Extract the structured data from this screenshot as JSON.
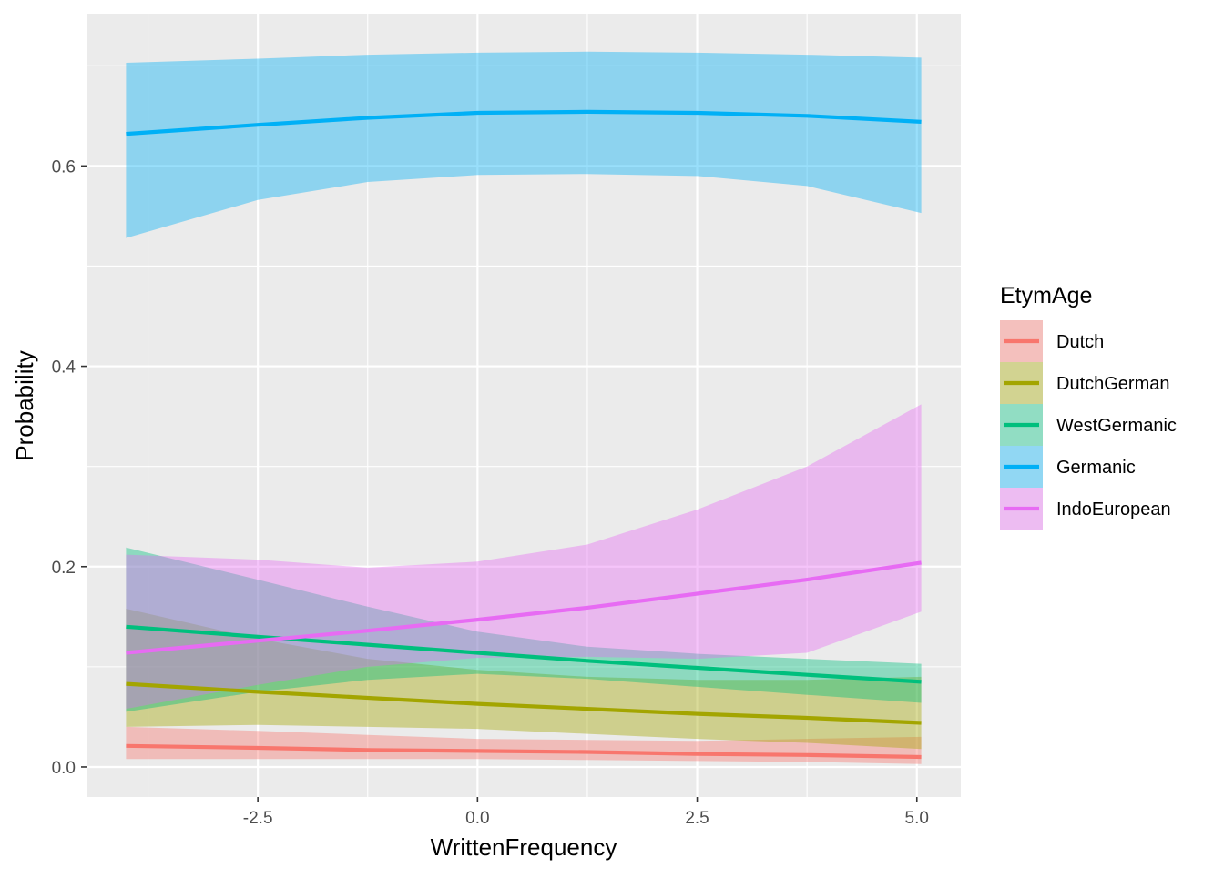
{
  "chart_data": {
    "type": "line",
    "title": "",
    "xlabel": "WrittenFrequency",
    "ylabel": "Probability",
    "xlim": [
      -4.45,
      5.5
    ],
    "ylim": [
      -0.03,
      0.752
    ],
    "x_ticks": [
      -2.5,
      0.0,
      2.5,
      5.0
    ],
    "x_tick_labels": [
      "-2.5",
      "0.0",
      "2.5",
      "5.0"
    ],
    "y_ticks": [
      0.0,
      0.2,
      0.4,
      0.6
    ],
    "y_tick_labels": [
      "0.0",
      "0.2",
      "0.4",
      "0.6"
    ],
    "grid": true,
    "legend_title": "EtymAge",
    "legend_position": "right",
    "x": [
      -4.0,
      -2.5,
      -1.25,
      0.0,
      1.25,
      2.5,
      3.75,
      5.05
    ],
    "series": [
      {
        "name": "Dutch",
        "color": "#F8766D",
        "values": [
          0.021,
          0.019,
          0.017,
          0.016,
          0.015,
          0.013,
          0.012,
          0.01
        ],
        "lower": [
          0.008,
          0.008,
          0.008,
          0.008,
          0.007,
          0.006,
          0.005,
          0.003
        ],
        "upper": [
          0.04,
          0.036,
          0.032,
          0.028,
          0.027,
          0.026,
          0.028,
          0.03
        ]
      },
      {
        "name": "DutchGerman",
        "color": "#A3A500",
        "values": [
          0.083,
          0.075,
          0.069,
          0.063,
          0.058,
          0.053,
          0.049,
          0.044
        ],
        "lower": [
          0.04,
          0.042,
          0.04,
          0.038,
          0.033,
          0.028,
          0.024,
          0.018
        ],
        "upper": [
          0.158,
          0.128,
          0.108,
          0.097,
          0.09,
          0.087,
          0.087,
          0.09
        ]
      },
      {
        "name": "WestGermanic",
        "color": "#00BF7D",
        "values": [
          0.14,
          0.13,
          0.122,
          0.114,
          0.106,
          0.099,
          0.092,
          0.085
        ],
        "lower": [
          0.055,
          0.075,
          0.087,
          0.093,
          0.088,
          0.08,
          0.072,
          0.064
        ],
        "upper": [
          0.219,
          0.187,
          0.16,
          0.135,
          0.12,
          0.113,
          0.108,
          0.103
        ]
      },
      {
        "name": "Germanic",
        "color": "#00B0F6",
        "values": [
          0.632,
          0.641,
          0.648,
          0.653,
          0.654,
          0.653,
          0.65,
          0.644
        ],
        "lower": [
          0.528,
          0.566,
          0.584,
          0.591,
          0.592,
          0.59,
          0.58,
          0.553
        ],
        "upper": [
          0.703,
          0.707,
          0.711,
          0.713,
          0.714,
          0.713,
          0.711,
          0.708
        ]
      },
      {
        "name": "IndoEuropean",
        "color": "#E76BF3",
        "values": [
          0.114,
          0.126,
          0.136,
          0.147,
          0.159,
          0.173,
          0.187,
          0.204
        ],
        "lower": [
          0.058,
          0.082,
          0.1,
          0.109,
          0.11,
          0.108,
          0.114,
          0.155
        ],
        "upper": [
          0.212,
          0.207,
          0.199,
          0.205,
          0.222,
          0.257,
          0.3,
          0.362
        ]
      }
    ]
  }
}
